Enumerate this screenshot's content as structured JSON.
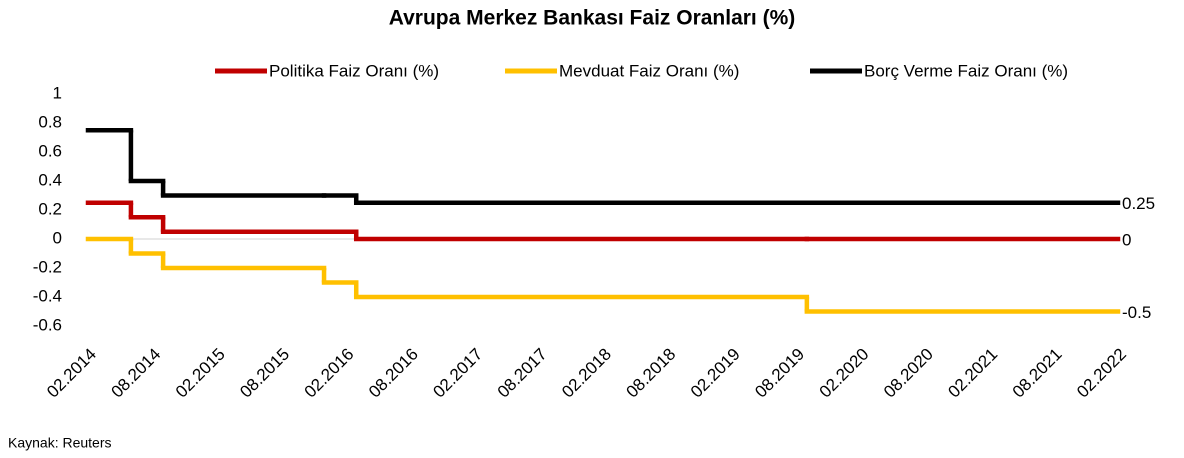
{
  "chart_data": {
    "type": "step-line",
    "title": "Avrupa Merkez Bankası Faiz Oranları (%)",
    "source": "Kaynak: Reuters",
    "x": [
      "02.2014",
      "06.2014",
      "09.2014",
      "12.2015",
      "03.2016",
      "09.2019",
      "02.2022"
    ],
    "series": [
      {
        "name": "Politika Faiz Oranı (%)",
        "color": "#c00000",
        "values": [
          0.25,
          0.15,
          0.05,
          0.05,
          0,
          0,
          0
        ]
      },
      {
        "name": "Mevduat Faiz Oranı (%)",
        "color": "#ffc000",
        "values": [
          0,
          -0.1,
          -0.2,
          -0.3,
          -0.4,
          -0.5,
          -0.5
        ]
      },
      {
        "name": "Borç Verme Faiz Oranı (%)",
        "color": "#000000",
        "values": [
          0.75,
          0.4,
          0.3,
          0.3,
          0.25,
          0.25,
          0.25
        ]
      }
    ],
    "xlim": [
      "02.2014",
      "02.2022"
    ],
    "xticks": [
      "02.2014",
      "08.2014",
      "02.2015",
      "08.2015",
      "02.2016",
      "08.2016",
      "02.2017",
      "08.2017",
      "02.2018",
      "08.2018",
      "02.2019",
      "08.2019",
      "02.2020",
      "08.2020",
      "02.2021",
      "08.2021",
      "02.2022"
    ],
    "ylim": [
      -0.6,
      1
    ],
    "yticks": [
      1,
      0.8,
      0.6,
      0.4,
      0.2,
      0,
      -0.2,
      -0.4,
      -0.6
    ],
    "legend": "top"
  }
}
